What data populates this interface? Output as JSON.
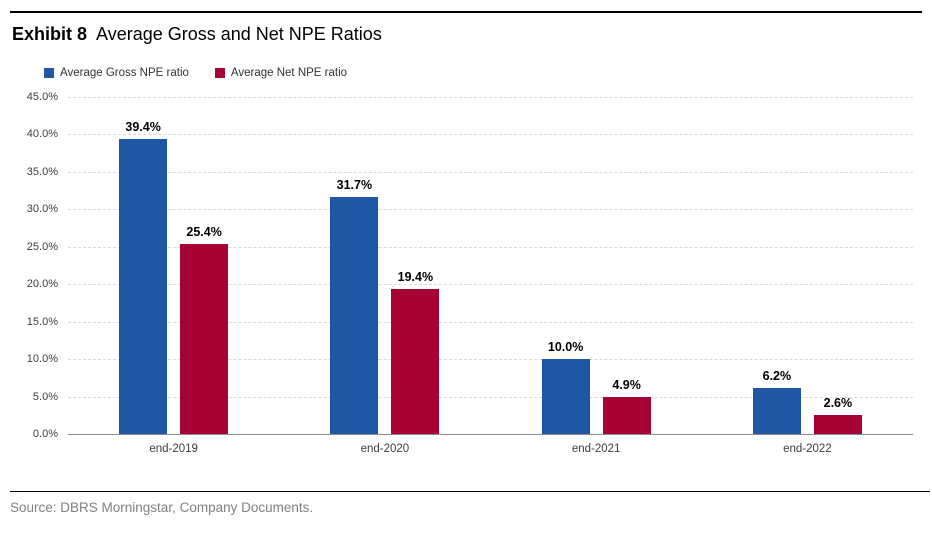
{
  "header": {
    "exhibit_label": "Exhibit 8",
    "title": "Average Gross and Net NPE Ratios"
  },
  "colors": {
    "gross_blue": "#1F57A5",
    "net_red": "#A60233",
    "gridline": "#D9D9D9",
    "axis_line": "#8C8C8C",
    "source_text": "#808080"
  },
  "chart_data": {
    "type": "bar",
    "categories": [
      "end-2019",
      "end-2020",
      "end-2021",
      "end-2022"
    ],
    "series": [
      {
        "name": "Average Gross NPE ratio",
        "color": "#1F57A5",
        "values": [
          39.4,
          31.7,
          10.0,
          6.2
        ],
        "data_labels": [
          "39.4%",
          "31.7%",
          "10.0%",
          "6.2%"
        ]
      },
      {
        "name": "Average Net NPE ratio",
        "color": "#A60233",
        "values": [
          25.4,
          19.4,
          4.9,
          2.6
        ],
        "data_labels": [
          "25.4%",
          "19.4%",
          "4.9%",
          "2.6%"
        ]
      }
    ],
    "title": "Average Gross and Net NPE Ratios",
    "xlabel": "",
    "ylabel": "",
    "ylim": [
      0,
      45
    ],
    "ytick_step": 5,
    "ytick_labels": [
      "0.0%",
      "5.0%",
      "10.0%",
      "15.0%",
      "20.0%",
      "25.0%",
      "30.0%",
      "35.0%",
      "40.0%",
      "45.0%"
    ],
    "grid": "horizontal-dashed",
    "legend_position": "top-left"
  },
  "footer": {
    "source": "Source: DBRS Morningstar, Company Documents."
  }
}
